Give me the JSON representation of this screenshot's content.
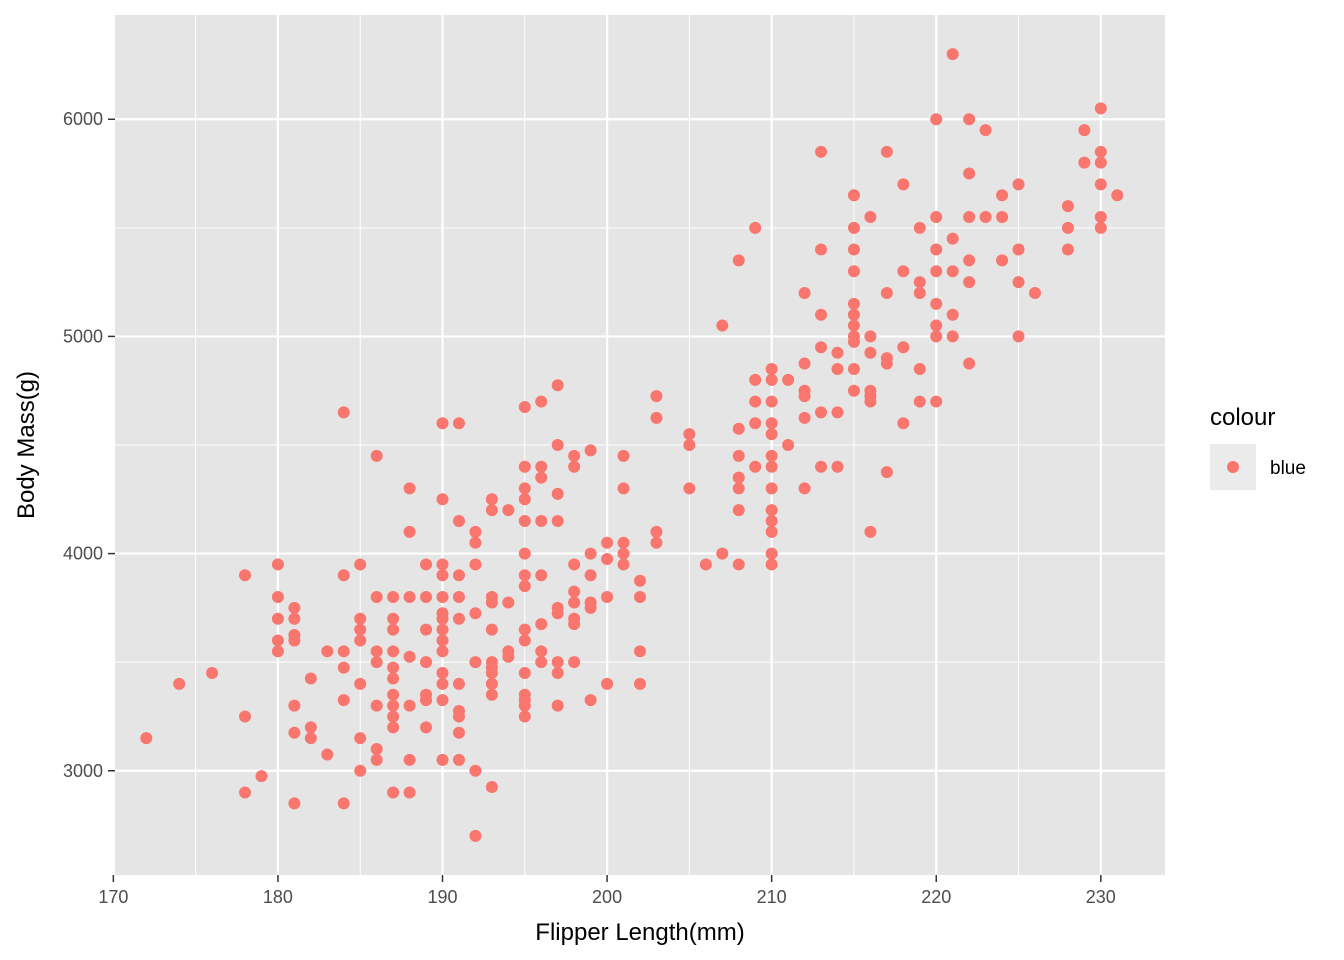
{
  "colors": {
    "panel_bg": "#e5e5e5",
    "grid": "#ffffff",
    "point": "#f8766d",
    "tick_text": "#4d4d4d",
    "tick_mark": "#333333",
    "legend_key_bg": "#ebebeb"
  },
  "chart_data": {
    "type": "scatter",
    "title": "",
    "xlabel": "Flipper Length(mm)",
    "ylabel": "Body Mass(g)",
    "xlim": [
      170.1,
      233.9
    ],
    "ylim": [
      2520,
      6480
    ],
    "x_ticks": [
      170,
      180,
      190,
      200,
      210,
      220,
      230
    ],
    "y_ticks": [
      3000,
      4000,
      5000,
      6000
    ],
    "grid": true,
    "legend": {
      "placement": "right",
      "title": "colour",
      "entries": [
        "blue"
      ]
    },
    "series": [
      {
        "name": "blue",
        "points": [
          [
            172,
            3150
          ],
          [
            174,
            3400
          ],
          [
            176,
            3450
          ],
          [
            178,
            3900
          ],
          [
            178,
            3250
          ],
          [
            178,
            2900
          ],
          [
            179,
            2975
          ],
          [
            180,
            3950
          ],
          [
            180,
            3800
          ],
          [
            180,
            3700
          ],
          [
            180,
            3600
          ],
          [
            180,
            3550
          ],
          [
            181,
            3750
          ],
          [
            181,
            3700
          ],
          [
            181,
            3625
          ],
          [
            181,
            3600
          ],
          [
            181,
            3300
          ],
          [
            181,
            3175
          ],
          [
            181,
            2850
          ],
          [
            182,
            3425
          ],
          [
            182,
            3200
          ],
          [
            182,
            3150
          ],
          [
            183,
            3550
          ],
          [
            183,
            3075
          ],
          [
            184,
            4650
          ],
          [
            184,
            3900
          ],
          [
            184,
            3550
          ],
          [
            184,
            3475
          ],
          [
            184,
            3325
          ],
          [
            184,
            2850
          ],
          [
            185,
            3950
          ],
          [
            185,
            3700
          ],
          [
            185,
            3650
          ],
          [
            185,
            3600
          ],
          [
            185,
            3400
          ],
          [
            185,
            3150
          ],
          [
            185,
            3000
          ],
          [
            186,
            4450
          ],
          [
            186,
            3800
          ],
          [
            186,
            3550
          ],
          [
            186,
            3500
          ],
          [
            186,
            3300
          ],
          [
            186,
            3100
          ],
          [
            186,
            3050
          ],
          [
            187,
            3800
          ],
          [
            187,
            3700
          ],
          [
            187,
            3650
          ],
          [
            187,
            3550
          ],
          [
            187,
            3475
          ],
          [
            187,
            3425
          ],
          [
            187,
            3350
          ],
          [
            187,
            3300
          ],
          [
            187,
            3250
          ],
          [
            187,
            3200
          ],
          [
            187,
            2900
          ],
          [
            188,
            4300
          ],
          [
            188,
            4100
          ],
          [
            188,
            3800
          ],
          [
            188,
            3525
          ],
          [
            188,
            3300
          ],
          [
            188,
            3050
          ],
          [
            188,
            2900
          ],
          [
            189,
            3950
          ],
          [
            189,
            3800
          ],
          [
            189,
            3650
          ],
          [
            189,
            3500
          ],
          [
            189,
            3350
          ],
          [
            189,
            3325
          ],
          [
            189,
            3200
          ],
          [
            190,
            4600
          ],
          [
            190,
            4250
          ],
          [
            190,
            3950
          ],
          [
            190,
            3900
          ],
          [
            190,
            3800
          ],
          [
            190,
            3725
          ],
          [
            190,
            3700
          ],
          [
            190,
            3650
          ],
          [
            190,
            3600
          ],
          [
            190,
            3550
          ],
          [
            190,
            3450
          ],
          [
            190,
            3400
          ],
          [
            190,
            3325
          ],
          [
            190,
            3050
          ],
          [
            191,
            4600
          ],
          [
            191,
            4150
          ],
          [
            191,
            3900
          ],
          [
            191,
            3800
          ],
          [
            191,
            3700
          ],
          [
            191,
            3400
          ],
          [
            191,
            3275
          ],
          [
            191,
            3250
          ],
          [
            191,
            3175
          ],
          [
            191,
            3050
          ],
          [
            192,
            4100
          ],
          [
            192,
            4050
          ],
          [
            192,
            3950
          ],
          [
            192,
            3725
          ],
          [
            192,
            3500
          ],
          [
            192,
            3000
          ],
          [
            192,
            2700
          ],
          [
            193,
            4250
          ],
          [
            193,
            4200
          ],
          [
            193,
            3800
          ],
          [
            193,
            3775
          ],
          [
            193,
            3650
          ],
          [
            193,
            3500
          ],
          [
            193,
            3475
          ],
          [
            193,
            3450
          ],
          [
            193,
            3400
          ],
          [
            193,
            3350
          ],
          [
            193,
            2925
          ],
          [
            194,
            4200
          ],
          [
            194,
            3775
          ],
          [
            194,
            3550
          ],
          [
            194,
            3525
          ],
          [
            195,
            4675
          ],
          [
            195,
            4400
          ],
          [
            195,
            4300
          ],
          [
            195,
            4250
          ],
          [
            195,
            4150
          ],
          [
            195,
            4000
          ],
          [
            195,
            3900
          ],
          [
            195,
            3850
          ],
          [
            195,
            3650
          ],
          [
            195,
            3600
          ],
          [
            195,
            3450
          ],
          [
            195,
            3350
          ],
          [
            195,
            3325
          ],
          [
            195,
            3300
          ],
          [
            195,
            3250
          ],
          [
            196,
            4700
          ],
          [
            196,
            4400
          ],
          [
            196,
            4350
          ],
          [
            196,
            4150
          ],
          [
            196,
            3900
          ],
          [
            196,
            3675
          ],
          [
            196,
            3550
          ],
          [
            196,
            3500
          ],
          [
            197,
            4775
          ],
          [
            197,
            4500
          ],
          [
            197,
            4275
          ],
          [
            197,
            4150
          ],
          [
            197,
            3750
          ],
          [
            197,
            3725
          ],
          [
            197,
            3500
          ],
          [
            197,
            3450
          ],
          [
            197,
            3300
          ],
          [
            198,
            4450
          ],
          [
            198,
            4400
          ],
          [
            198,
            3950
          ],
          [
            198,
            3825
          ],
          [
            198,
            3775
          ],
          [
            198,
            3700
          ],
          [
            198,
            3675
          ],
          [
            198,
            3500
          ],
          [
            199,
            4475
          ],
          [
            199,
            4000
          ],
          [
            199,
            3900
          ],
          [
            199,
            3775
          ],
          [
            199,
            3750
          ],
          [
            199,
            3325
          ],
          [
            200,
            4050
          ],
          [
            200,
            3975
          ],
          [
            200,
            3800
          ],
          [
            200,
            3400
          ],
          [
            201,
            4450
          ],
          [
            201,
            4300
          ],
          [
            201,
            4050
          ],
          [
            201,
            4000
          ],
          [
            201,
            3950
          ],
          [
            202,
            3875
          ],
          [
            202,
            3800
          ],
          [
            202,
            3550
          ],
          [
            202,
            3400
          ],
          [
            203,
            4725
          ],
          [
            203,
            4625
          ],
          [
            203,
            4100
          ],
          [
            203,
            4050
          ],
          [
            205,
            4550
          ],
          [
            205,
            4500
          ],
          [
            205,
            4300
          ],
          [
            206,
            3950
          ],
          [
            207,
            5050
          ],
          [
            207,
            4000
          ],
          [
            208,
            5350
          ],
          [
            208,
            4575
          ],
          [
            208,
            4450
          ],
          [
            208,
            4350
          ],
          [
            208,
            4300
          ],
          [
            208,
            4200
          ],
          [
            208,
            3950
          ],
          [
            209,
            5500
          ],
          [
            209,
            4800
          ],
          [
            209,
            4700
          ],
          [
            209,
            4600
          ],
          [
            209,
            4400
          ],
          [
            210,
            4850
          ],
          [
            210,
            4800
          ],
          [
            210,
            4700
          ],
          [
            210,
            4600
          ],
          [
            210,
            4550
          ],
          [
            210,
            4450
          ],
          [
            210,
            4400
          ],
          [
            210,
            4300
          ],
          [
            210,
            4200
          ],
          [
            210,
            4150
          ],
          [
            210,
            4100
          ],
          [
            210,
            4000
          ],
          [
            210,
            3950
          ],
          [
            211,
            4800
          ],
          [
            211,
            4500
          ],
          [
            212,
            5200
          ],
          [
            212,
            4875
          ],
          [
            212,
            4750
          ],
          [
            212,
            4725
          ],
          [
            212,
            4625
          ],
          [
            212,
            4300
          ],
          [
            213,
            5850
          ],
          [
            213,
            5400
          ],
          [
            213,
            5100
          ],
          [
            213,
            4950
          ],
          [
            213,
            4650
          ],
          [
            213,
            4400
          ],
          [
            214,
            4925
          ],
          [
            214,
            4850
          ],
          [
            214,
            4650
          ],
          [
            214,
            4400
          ],
          [
            215,
            5650
          ],
          [
            215,
            5500
          ],
          [
            215,
            5400
          ],
          [
            215,
            5300
          ],
          [
            215,
            5150
          ],
          [
            215,
            5100
          ],
          [
            215,
            5050
          ],
          [
            215,
            5000
          ],
          [
            215,
            4975
          ],
          [
            215,
            4850
          ],
          [
            215,
            4750
          ],
          [
            216,
            5550
          ],
          [
            216,
            5000
          ],
          [
            216,
            4925
          ],
          [
            216,
            4750
          ],
          [
            216,
            4725
          ],
          [
            216,
            4700
          ],
          [
            216,
            4100
          ],
          [
            217,
            5850
          ],
          [
            217,
            5200
          ],
          [
            217,
            4900
          ],
          [
            217,
            4875
          ],
          [
            217,
            4375
          ],
          [
            218,
            5700
          ],
          [
            218,
            5300
          ],
          [
            218,
            4950
          ],
          [
            218,
            4600
          ],
          [
            219,
            5500
          ],
          [
            219,
            5250
          ],
          [
            219,
            5200
          ],
          [
            219,
            4850
          ],
          [
            219,
            4700
          ],
          [
            220,
            6000
          ],
          [
            220,
            5550
          ],
          [
            220,
            5400
          ],
          [
            220,
            5300
          ],
          [
            220,
            5150
          ],
          [
            220,
            5050
          ],
          [
            220,
            5000
          ],
          [
            220,
            4700
          ],
          [
            221,
            6300
          ],
          [
            221,
            5450
          ],
          [
            221,
            5300
          ],
          [
            221,
            5100
          ],
          [
            221,
            5000
          ],
          [
            222,
            6000
          ],
          [
            222,
            5750
          ],
          [
            222,
            5550
          ],
          [
            222,
            5350
          ],
          [
            222,
            5250
          ],
          [
            222,
            4875
          ],
          [
            223,
            5950
          ],
          [
            223,
            5550
          ],
          [
            224,
            5650
          ],
          [
            224,
            5550
          ],
          [
            224,
            5350
          ],
          [
            225,
            5700
          ],
          [
            225,
            5400
          ],
          [
            225,
            5250
          ],
          [
            225,
            5000
          ],
          [
            226,
            5200
          ],
          [
            228,
            5600
          ],
          [
            228,
            5500
          ],
          [
            228,
            5400
          ],
          [
            229,
            5950
          ],
          [
            229,
            5800
          ],
          [
            230,
            6050
          ],
          [
            230,
            5850
          ],
          [
            230,
            5800
          ],
          [
            230,
            5700
          ],
          [
            230,
            5550
          ],
          [
            230,
            5500
          ],
          [
            231,
            5650
          ]
        ]
      }
    ]
  }
}
